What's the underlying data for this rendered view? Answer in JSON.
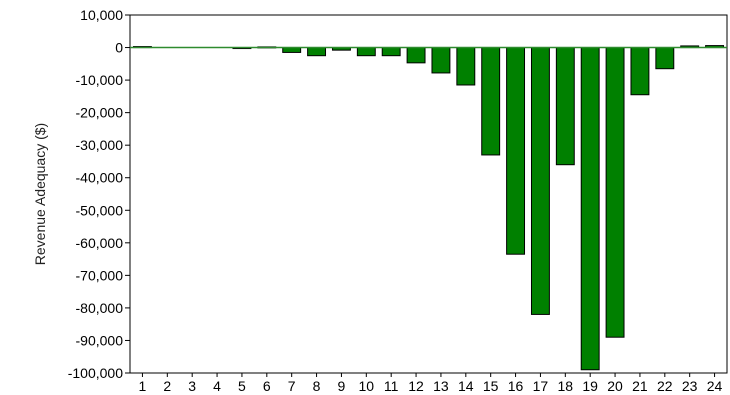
{
  "chart_data": {
    "type": "bar",
    "title": "",
    "xlabel": "",
    "ylabel": "Revenue Adequacy ($)",
    "categories": [
      "1",
      "2",
      "3",
      "4",
      "5",
      "6",
      "7",
      "8",
      "9",
      "10",
      "11",
      "12",
      "13",
      "14",
      "15",
      "16",
      "17",
      "18",
      "19",
      "20",
      "21",
      "22",
      "23",
      "24"
    ],
    "values": [
      300,
      0,
      0,
      0,
      -200,
      200,
      -1500,
      -2500,
      -800,
      -2500,
      -2500,
      -4700,
      -7800,
      -11500,
      -33000,
      -63500,
      -82000,
      -36000,
      -99000,
      -89000,
      -14500,
      -6500,
      500,
      600
    ],
    "ylim": [
      -100000,
      10000
    ],
    "yticks": [
      10000,
      0,
      -10000,
      -20000,
      -30000,
      -40000,
      -50000,
      -60000,
      -70000,
      -80000,
      -90000,
      -100000
    ],
    "ytick_labels": [
      "10,000",
      "0",
      "-10,000",
      "-20,000",
      "-30,000",
      "-40,000",
      "-50,000",
      "-60,000",
      "-70,000",
      "-80,000",
      "-90,000",
      "-100,000"
    ],
    "bar_color": "#008000",
    "bar_edge_color": "#000000",
    "zero_line_color": "#2e8b2e",
    "grid": false,
    "legend": "none"
  }
}
